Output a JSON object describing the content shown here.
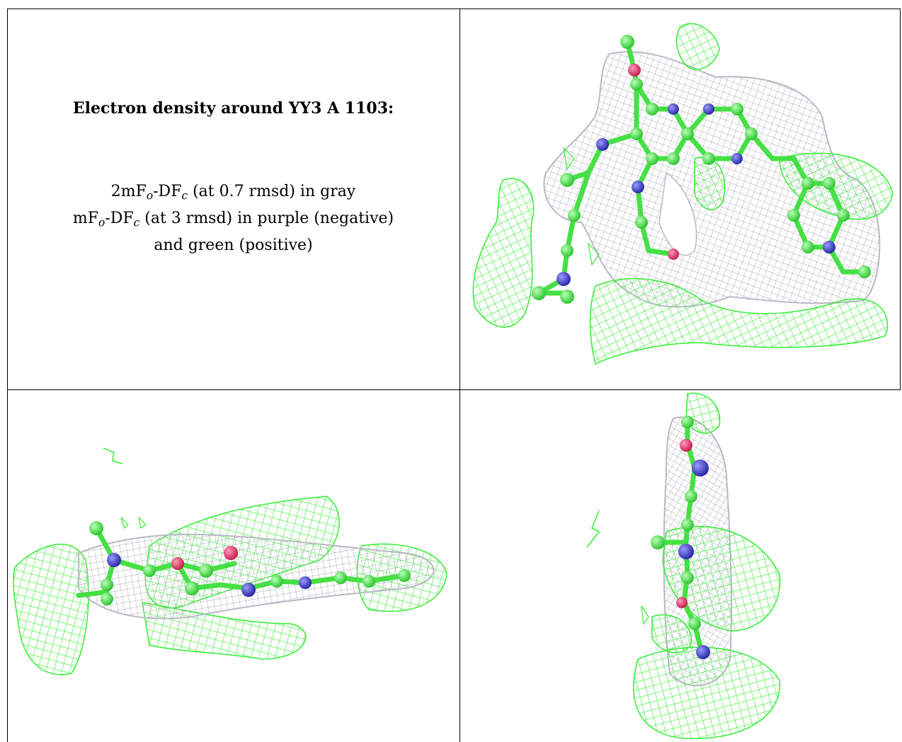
{
  "title": "Electron density around YY3 A 1103:",
  "legend": {
    "line1": {
      "a": "2mF",
      "a_sub": "o",
      "b": "-DF",
      "b_sub": "c",
      "rest": " (at 0.7 rmsd) in gray"
    },
    "line2": {
      "a": "mF",
      "a_sub": "o",
      "b": "-DF",
      "b_sub": "c",
      "rest": " (at 3 rmsd) in purple (negative)"
    },
    "line3": "and green (positive)"
  },
  "colors": {
    "mesh_gray": "#b9b9c4",
    "mesh_green": "#33ee33",
    "carbon": "#44e044",
    "nitrogen": "#3c3cc8",
    "oxygen": "#e8366a",
    "border": "#000000"
  },
  "panels": [
    {
      "view": "top-right"
    },
    {
      "view": "bottom-left"
    },
    {
      "view": "bottom-right"
    }
  ]
}
